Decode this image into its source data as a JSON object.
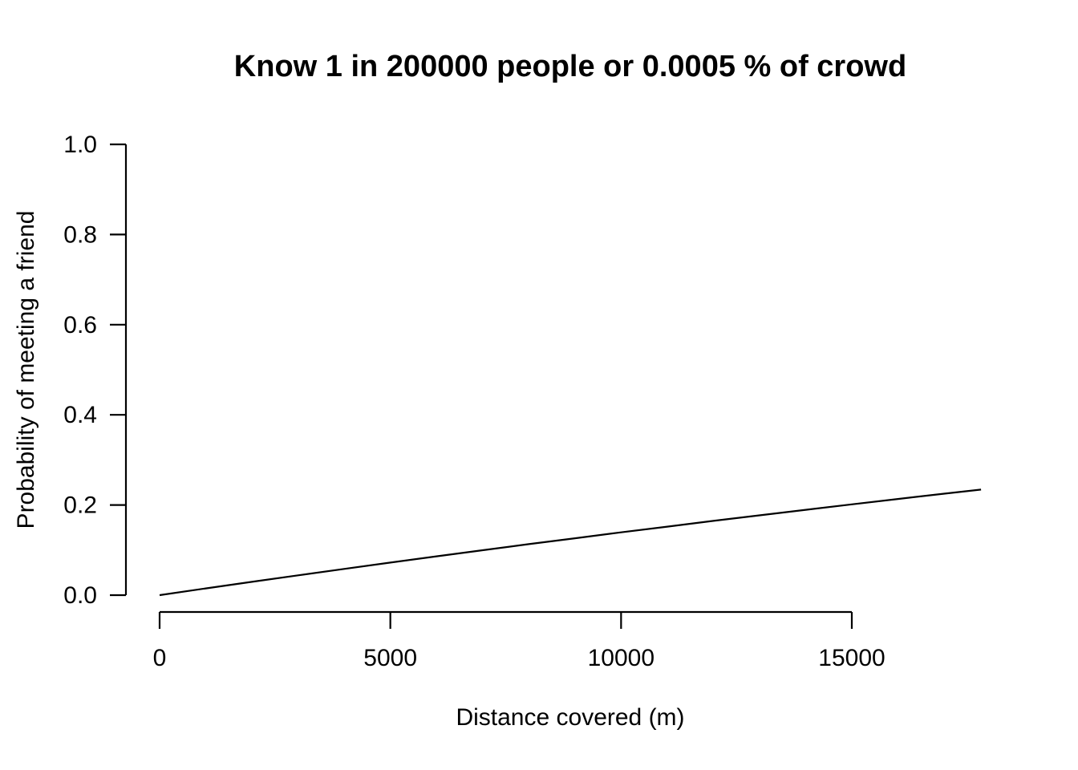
{
  "page": {
    "background_color": "#ffffff",
    "foreground_color": "#000000"
  },
  "chart_data": {
    "type": "line",
    "title": "Know 1 in 200000 people or 0.0005 % of crowd",
    "xlabel": "Distance covered (m)",
    "ylabel": "Probability of meeting a friend",
    "grid": false,
    "legend": "none",
    "line_color": "#000000",
    "x_axis": {
      "range": [
        0,
        17800
      ],
      "tick_values": [
        0,
        5000,
        10000,
        15000
      ],
      "tick_labels": [
        "0",
        "5000",
        "10000",
        "15000"
      ]
    },
    "y_axis": {
      "range": [
        0,
        1
      ],
      "tick_values": [
        0,
        0.2,
        0.4,
        0.6,
        0.8,
        1.0
      ],
      "tick_labels": [
        "0.0",
        "0.2",
        "0.4",
        "0.6",
        "0.8",
        "1.0"
      ]
    },
    "series": [
      {
        "name": "probability-of-meeting-a-friend",
        "color": "#000000",
        "points": [
          [
            0,
            0.0
          ],
          [
            1000,
            0.0149
          ],
          [
            2000,
            0.0296
          ],
          [
            3000,
            0.044
          ],
          [
            4000,
            0.0582
          ],
          [
            5000,
            0.0723
          ],
          [
            6000,
            0.0861
          ],
          [
            7000,
            0.0997
          ],
          [
            8000,
            0.1131
          ],
          [
            9000,
            0.1262
          ],
          [
            10000,
            0.1393
          ],
          [
            11000,
            0.152
          ],
          [
            12000,
            0.1647
          ],
          [
            13000,
            0.1771
          ],
          [
            14000,
            0.1893
          ],
          [
            15000,
            0.2014
          ],
          [
            16000,
            0.2133
          ],
          [
            17000,
            0.225
          ],
          [
            17800,
            0.2342
          ]
        ]
      }
    ]
  }
}
